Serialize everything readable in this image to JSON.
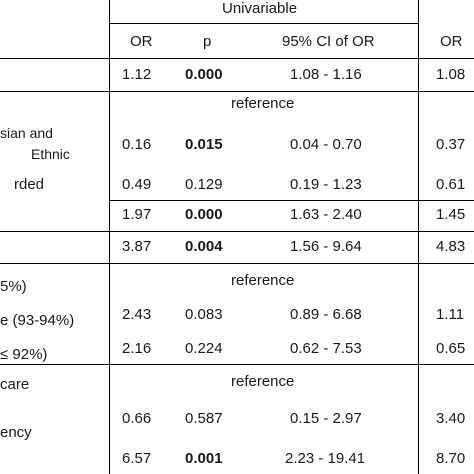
{
  "header": {
    "group_label": "Univariable",
    "col_or": "OR",
    "col_p": "p",
    "col_ci": "95% CI of OR",
    "col_or2": "OR"
  },
  "rows": [
    {
      "label": "",
      "or": "1.12",
      "p": "0.000",
      "ci": "1.08 - 1.16",
      "or2": "1.08"
    },
    {
      "label": "",
      "reference": "reference"
    },
    {
      "label": "sian and",
      "label2": "Ethnic",
      "or": "0.16",
      "p": "0.015",
      "ci": "0.04 - 0.70",
      "or2": "0.37"
    },
    {
      "label": "rded",
      "or": "0.49",
      "p": "0.129",
      "ci": "0.19 - 1.23",
      "or2": "0.61"
    },
    {
      "label": "",
      "or": "1.97",
      "p": "0.000",
      "ci": "1.63 - 2.40",
      "or2": "1.45"
    },
    {
      "label": "",
      "or": "3.87",
      "p": "0.004",
      "ci": "1.56 - 9.64",
      "or2": "4.83"
    },
    {
      "label": "5%)",
      "reference": "reference"
    },
    {
      "label": "e (93-94%)",
      "or": "2.43",
      "p": "0.083",
      "ci": "0.89 - 6.68",
      "or2": "1.11"
    },
    {
      "label": "≤ 92%)",
      "or": "2.16",
      "p": "0.224",
      "ci": "0.62 - 7.53",
      "or2": "0.65"
    },
    {
      "label": "care",
      "reference": "reference"
    },
    {
      "label": "ency",
      "or": "0.66",
      "p": "0.587",
      "ci": "0.15 - 2.97",
      "or2": "3.40"
    },
    {
      "label": "",
      "or": "6.57",
      "p": "0.001",
      "ci": "2.23 - 19.41",
      "or2": "8.70"
    }
  ]
}
